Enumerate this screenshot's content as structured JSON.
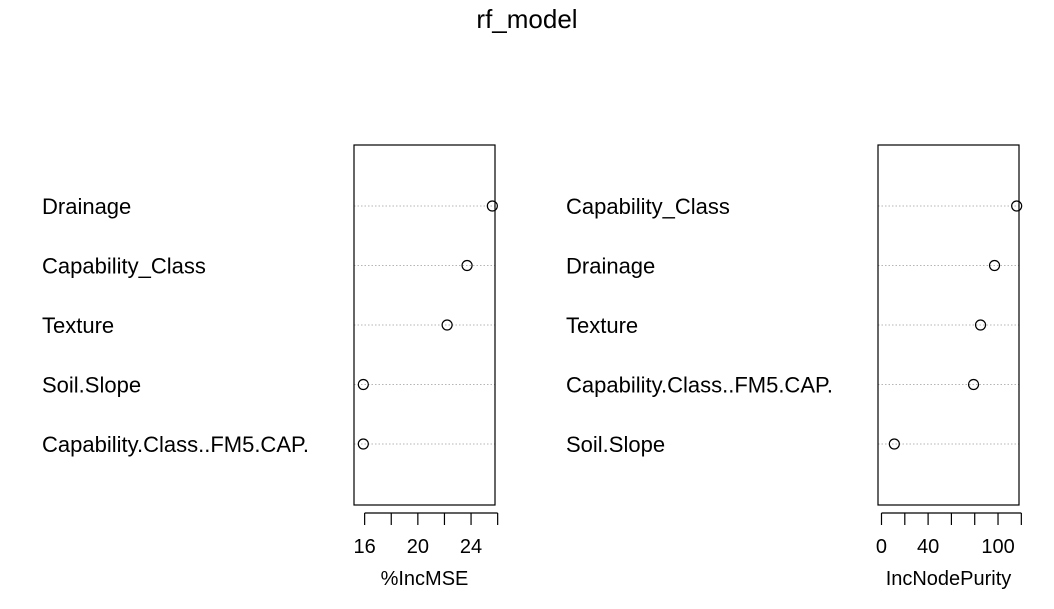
{
  "title": "rf_model",
  "chart_data": [
    {
      "type": "scatter",
      "subtype": "dotchart",
      "xlabel": "%IncMSE",
      "xlim": [
        15.2,
        25.8
      ],
      "xticks": [
        16,
        18,
        20,
        22,
        24,
        26
      ],
      "xtick_labels": [
        "16",
        "",
        "20",
        "",
        "24",
        ""
      ],
      "grid": true,
      "categories": [
        "Drainage",
        "Capability_Class",
        "Texture",
        "Soil.Slope",
        "Capability.Class..FM5.CAP."
      ],
      "values": [
        25.6,
        23.7,
        22.2,
        15.9,
        15.9
      ]
    },
    {
      "type": "scatter",
      "subtype": "dotchart",
      "xlabel": "IncNodePurity",
      "xlim": [
        -3,
        118
      ],
      "xticks": [
        0,
        20,
        40,
        60,
        80,
        100,
        120
      ],
      "xtick_labels": [
        "0",
        "",
        "40",
        "",
        "",
        "100",
        ""
      ],
      "grid": true,
      "categories": [
        "Capability_Class",
        "Drainage",
        "Texture",
        "Capability.Class..FM5.CAP.",
        "Soil.Slope"
      ],
      "values": [
        116,
        97,
        85,
        79,
        11
      ]
    }
  ]
}
